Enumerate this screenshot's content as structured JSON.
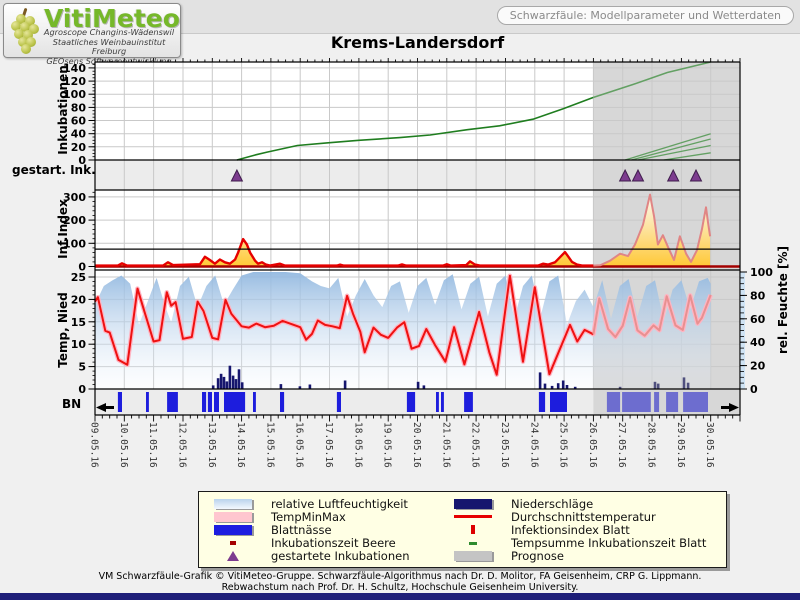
{
  "header": {
    "logo_title": "VitiMeteo",
    "logo_lines": [
      "Agroscope Changins-Wädenswil",
      "Staatliches Weinbauinstitut Freiburg",
      "GEOsens Softwareentwicklung"
    ],
    "badge": "Schwarzfäule: Modellparameter und Wetterdaten"
  },
  "title": "Krems-Landersdorf",
  "axis_labels": {
    "incubations": "Inkubationen",
    "started_incubations": "gestart. Ink.",
    "infection_index": "Inf.Index",
    "temp_precip": "Temp, Nied",
    "leaf_wetness": "BN",
    "rel_humidity": "rel. Feuchte [%]"
  },
  "legend": {
    "left": [
      {
        "swatch": "humidity",
        "label": "relative Luftfeuchtigkeit"
      },
      {
        "swatch": "tempminmax",
        "label": "TempMinMax"
      },
      {
        "swatch": "bn",
        "label": "Blattnässe"
      },
      {
        "swatch": "beere",
        "label": "Inkubationszeit Beere"
      },
      {
        "swatch": "triangle",
        "label": "gestartete Inkubationen"
      }
    ],
    "right": [
      {
        "swatch": "precip",
        "label": "Niederschläge"
      },
      {
        "swatch": "avgtemp",
        "label": "Durchschnittstemperatur"
      },
      {
        "swatch": "infindex",
        "label": "Infektionsindex Blatt"
      },
      {
        "swatch": "tempsum",
        "label": "Tempsumme Inkubationszeit Blatt"
      },
      {
        "swatch": "prognose",
        "label": "Prognose"
      }
    ]
  },
  "footer": {
    "line1": "VM Schwarzfäule-Grafik © VitiMeteo-Gruppe. Schwarzfäule-Algorithmus nach Dr. D. Molitor, FA Geisenheim, CRP G. Lippmann.",
    "line2": "Rebwachstum nach Prof. Dr. H. Schultz, Hochschule Geisenheim University."
  },
  "colors": {
    "tempsum_line": "#1f7d1f",
    "tempsum_prognose": "#63a063",
    "infection_line": "#e60000",
    "infection_prognose": "#e08585",
    "berry_baseline": "#a40000",
    "threshold": "#000000",
    "temperature_line": "#ee1111",
    "temperature_prognose": "#e89090",
    "tempminmax_band": "#ffb4c2",
    "humidity_top": "#93b9e0",
    "humidity_bottom": "#eef4fb",
    "precip": "#16166e",
    "precip_prognose": "#50507e",
    "bn_bar": "#1d1ddd",
    "bn_bar_prognose": "#6d6dcf",
    "marker": "#7d3c8f",
    "prognose_bg": "#d7d7d7",
    "band_bg": "#ececec",
    "grid": "#c9c9c9",
    "yellow_fill": "#ffc835",
    "axis_strip": "#cfe3f4"
  },
  "chart_data": {
    "type": "line",
    "x_axis": {
      "labels": [
        "09.05.16",
        "10.05.16",
        "11.05.16",
        "12.05.16",
        "13.05.16",
        "14.05.16",
        "15.05.16",
        "16.05.16",
        "17.05.16",
        "18.05.16",
        "19.05.16",
        "20.05.16",
        "21.05.16",
        "22.05.16",
        "23.05.16",
        "24.05.16",
        "25.05.16",
        "26.05.16",
        "27.05.16",
        "28.05.16",
        "29.05.16",
        "30.05.16"
      ],
      "days_total": 22,
      "prognose_start_day": 17
    },
    "incubations": {
      "ylim": [
        0,
        149
      ],
      "yticks": [
        0,
        20,
        40,
        60,
        80,
        100,
        120,
        140
      ],
      "tempsum_line": [
        [
          4.84,
          0
        ],
        [
          5.5,
          8
        ],
        [
          5.87,
          12
        ],
        [
          6.9,
          22
        ],
        [
          7.9,
          26
        ],
        [
          9.0,
          30
        ],
        [
          10.4,
          34
        ],
        [
          11.43,
          38
        ],
        [
          12.7,
          46
        ],
        [
          13.8,
          52
        ],
        [
          14.94,
          62
        ],
        [
          15.97,
          78
        ],
        [
          16.99,
          95
        ],
        [
          18.36,
          115
        ],
        [
          19.52,
          133
        ],
        [
          21.0,
          149
        ]
      ],
      "prognose_lines": [
        [
          [
            18.08,
            0
          ],
          [
            21.0,
            40
          ]
        ],
        [
          [
            18.3,
            0
          ],
          [
            21.0,
            32
          ]
        ],
        [
          [
            18.52,
            0
          ],
          [
            21.0,
            22
          ]
        ],
        [
          [
            19.4,
            0
          ],
          [
            21.0,
            11
          ]
        ]
      ]
    },
    "started_incubations": {
      "marker_days": [
        4.84,
        18.08,
        18.52,
        19.72,
        20.5
      ]
    },
    "infection_index": {
      "ylim": [
        0,
        330
      ],
      "yticks": [
        0,
        100,
        200,
        300
      ],
      "threshold": 75,
      "line": [
        [
          0,
          4
        ],
        [
          0.78,
          4
        ],
        [
          0.92,
          14
        ],
        [
          1.09,
          4
        ],
        [
          2.32,
          4
        ],
        [
          2.49,
          18
        ],
        [
          2.66,
          6
        ],
        [
          3.58,
          10
        ],
        [
          3.75,
          42
        ],
        [
          3.92,
          28
        ],
        [
          4.09,
          12
        ],
        [
          4.26,
          30
        ],
        [
          4.43,
          18
        ],
        [
          4.6,
          12
        ],
        [
          4.78,
          30
        ],
        [
          4.88,
          60
        ],
        [
          5.05,
          118
        ],
        [
          5.18,
          95
        ],
        [
          5.29,
          60
        ],
        [
          5.46,
          25
        ],
        [
          5.56,
          12
        ],
        [
          5.7,
          18
        ],
        [
          5.83,
          8
        ],
        [
          5.97,
          4
        ],
        [
          6.31,
          12
        ],
        [
          6.48,
          4
        ],
        [
          8.25,
          4
        ],
        [
          8.36,
          8
        ],
        [
          8.49,
          4
        ],
        [
          10.33,
          4
        ],
        [
          10.47,
          9
        ],
        [
          10.61,
          4
        ],
        [
          11.87,
          4
        ],
        [
          12.0,
          10
        ],
        [
          12.14,
          4
        ],
        [
          12.66,
          6
        ],
        [
          12.79,
          22
        ],
        [
          12.96,
          8
        ],
        [
          13.13,
          4
        ],
        [
          15.11,
          4
        ],
        [
          15.28,
          12
        ],
        [
          15.45,
          8
        ],
        [
          15.69,
          18
        ],
        [
          15.86,
          40
        ],
        [
          16.03,
          62
        ],
        [
          16.13,
          45
        ],
        [
          16.27,
          20
        ],
        [
          16.44,
          8
        ],
        [
          16.61,
          4
        ],
        [
          17.0,
          4
        ],
        [
          17.23,
          5
        ],
        [
          17.57,
          25
        ],
        [
          17.91,
          55
        ],
        [
          18.18,
          45
        ],
        [
          18.42,
          95
        ],
        [
          18.69,
          180
        ],
        [
          18.93,
          310
        ],
        [
          19.07,
          215
        ],
        [
          19.2,
          95
        ],
        [
          19.37,
          135
        ],
        [
          19.54,
          85
        ],
        [
          19.75,
          28
        ],
        [
          19.95,
          130
        ],
        [
          20.16,
          55
        ],
        [
          20.33,
          20
        ],
        [
          20.53,
          70
        ],
        [
          20.7,
          160
        ],
        [
          20.84,
          255
        ],
        [
          20.91,
          190
        ],
        [
          20.98,
          130
        ]
      ]
    },
    "weather": {
      "temp_ylim": [
        0,
        26.5
      ],
      "temp_yticks": [
        0,
        5,
        10,
        15,
        20,
        25
      ],
      "humidity_ylim": [
        0,
        100
      ],
      "humidity_yticks": [
        0,
        20,
        40,
        60,
        80,
        100
      ],
      "temperature": [
        [
          0,
          19.5
        ],
        [
          0.1,
          20.5
        ],
        [
          0.35,
          13
        ],
        [
          0.5,
          12.6
        ],
        [
          0.8,
          6.5
        ],
        [
          1.1,
          5.4
        ],
        [
          1.45,
          22.4
        ],
        [
          1.7,
          17
        ],
        [
          2.0,
          10.6
        ],
        [
          2.2,
          10.9
        ],
        [
          2.45,
          21.6
        ],
        [
          2.6,
          18.6
        ],
        [
          2.75,
          19.4
        ],
        [
          3.0,
          11.2
        ],
        [
          3.3,
          11.6
        ],
        [
          3.5,
          19.5
        ],
        [
          3.7,
          17.4
        ],
        [
          4.0,
          11.4
        ],
        [
          4.2,
          11.1
        ],
        [
          4.45,
          19.9
        ],
        [
          4.65,
          16.8
        ],
        [
          5.0,
          14
        ],
        [
          5.25,
          13.7
        ],
        [
          5.5,
          14.6
        ],
        [
          5.8,
          13.8
        ],
        [
          6.1,
          14.1
        ],
        [
          6.4,
          15.2
        ],
        [
          6.65,
          14.6
        ],
        [
          7.0,
          13.8
        ],
        [
          7.2,
          11
        ],
        [
          7.4,
          12.3
        ],
        [
          7.6,
          15.3
        ],
        [
          7.85,
          14.3
        ],
        [
          8.1,
          14
        ],
        [
          8.35,
          13.6
        ],
        [
          8.6,
          20.8
        ],
        [
          8.8,
          16.8
        ],
        [
          9.05,
          12.8
        ],
        [
          9.2,
          8.2
        ],
        [
          9.5,
          13.7
        ],
        [
          9.75,
          12.1
        ],
        [
          10.0,
          11.4
        ],
        [
          10.3,
          13.7
        ],
        [
          10.55,
          14.9
        ],
        [
          10.8,
          9
        ],
        [
          11.05,
          9.6
        ],
        [
          11.3,
          13.4
        ],
        [
          11.6,
          9.8
        ],
        [
          11.95,
          6.1
        ],
        [
          12.25,
          13.8
        ],
        [
          12.6,
          5.5
        ],
        [
          13.1,
          17.2
        ],
        [
          13.45,
          8.2
        ],
        [
          13.7,
          3.2
        ],
        [
          14.15,
          25.3
        ],
        [
          14.6,
          6.1
        ],
        [
          15.0,
          22.7
        ],
        [
          15.5,
          3.3
        ],
        [
          16.2,
          14.3
        ],
        [
          16.45,
          10.6
        ],
        [
          16.7,
          13.2
        ],
        [
          17.0,
          12.2
        ],
        [
          17.2,
          20.2
        ],
        [
          17.5,
          13.4
        ],
        [
          17.75,
          11.6
        ],
        [
          18.0,
          14.1
        ],
        [
          18.25,
          20.4
        ],
        [
          18.5,
          13.1
        ],
        [
          18.75,
          11.9
        ],
        [
          19.05,
          14.2
        ],
        [
          19.25,
          13.1
        ],
        [
          19.5,
          20.7
        ],
        [
          19.8,
          14.2
        ],
        [
          20.05,
          13.2
        ],
        [
          20.3,
          20.9
        ],
        [
          20.55,
          14.6
        ],
        [
          20.7,
          15.9
        ],
        [
          21.0,
          21
        ]
      ],
      "humidity": [
        [
          0,
          72
        ],
        [
          0.3,
          88
        ],
        [
          0.6,
          93
        ],
        [
          0.9,
          97
        ],
        [
          1.2,
          90
        ],
        [
          1.5,
          55
        ],
        [
          1.8,
          75
        ],
        [
          2.1,
          95
        ],
        [
          2.4,
          70
        ],
        [
          2.6,
          57
        ],
        [
          2.9,
          88
        ],
        [
          3.2,
          96
        ],
        [
          3.5,
          70
        ],
        [
          3.8,
          88
        ],
        [
          4.1,
          97
        ],
        [
          4.4,
          72
        ],
        [
          4.7,
          85
        ],
        [
          5.0,
          97
        ],
        [
          5.4,
          100
        ],
        [
          5.9,
          100
        ],
        [
          6.5,
          100
        ],
        [
          7.0,
          99
        ],
        [
          7.4,
          92
        ],
        [
          7.7,
          88
        ],
        [
          8.0,
          86
        ],
        [
          8.3,
          95
        ],
        [
          8.6,
          62
        ],
        [
          8.9,
          80
        ],
        [
          9.2,
          94
        ],
        [
          9.5,
          80
        ],
        [
          9.8,
          70
        ],
        [
          10.1,
          88
        ],
        [
          10.4,
          92
        ],
        [
          10.7,
          65
        ],
        [
          11.0,
          88
        ],
        [
          11.3,
          95
        ],
        [
          11.6,
          72
        ],
        [
          11.9,
          93
        ],
        [
          12.2,
          98
        ],
        [
          12.5,
          68
        ],
        [
          12.8,
          90
        ],
        [
          13.1,
          96
        ],
        [
          13.4,
          62
        ],
        [
          13.7,
          90
        ],
        [
          14.0,
          97
        ],
        [
          14.3,
          60
        ],
        [
          14.6,
          88
        ],
        [
          14.9,
          97
        ],
        [
          15.2,
          62
        ],
        [
          15.5,
          92
        ],
        [
          15.8,
          97
        ],
        [
          16.1,
          55
        ],
        [
          16.4,
          75
        ],
        [
          16.7,
          85
        ],
        [
          17.0,
          70
        ],
        [
          17.3,
          93
        ],
        [
          17.6,
          60
        ],
        [
          17.9,
          88
        ],
        [
          18.2,
          94
        ],
        [
          18.5,
          62
        ],
        [
          18.8,
          88
        ],
        [
          19.1,
          93
        ],
        [
          19.4,
          58
        ],
        [
          19.7,
          85
        ],
        [
          20.0,
          93
        ],
        [
          20.3,
          68
        ],
        [
          20.6,
          92
        ],
        [
          20.9,
          95
        ],
        [
          21.0,
          90
        ]
      ],
      "precipitation": [
        [
          4.03,
          0.8
        ],
        [
          4.2,
          2.4
        ],
        [
          4.3,
          3.4
        ],
        [
          4.4,
          2.7
        ],
        [
          4.5,
          1.7
        ],
        [
          4.6,
          5.2
        ],
        [
          4.71,
          3.0
        ],
        [
          4.81,
          2.2
        ],
        [
          4.91,
          4.4
        ],
        [
          5.02,
          1.5
        ],
        [
          6.34,
          1.1
        ],
        [
          6.99,
          0.6
        ],
        [
          7.33,
          1.0
        ],
        [
          8.53,
          1.9
        ],
        [
          11.02,
          1.6
        ],
        [
          11.22,
          0.8
        ],
        [
          15.18,
          3.7
        ],
        [
          15.35,
          1.2
        ],
        [
          15.59,
          0.7
        ],
        [
          15.8,
          1.3
        ],
        [
          15.97,
          1.9
        ],
        [
          16.1,
          0.9
        ],
        [
          16.38,
          0.5
        ],
        [
          17.91,
          0.5
        ],
        [
          19.1,
          1.6
        ],
        [
          19.21,
          1.2
        ],
        [
          20.09,
          2.6
        ],
        [
          20.23,
          1.4
        ]
      ]
    },
    "leaf_wetness": {
      "bars": [
        [
          0.78,
          0.92
        ],
        [
          1.74,
          1.84
        ],
        [
          2.46,
          2.83
        ],
        [
          3.65,
          3.79
        ],
        [
          3.85,
          3.99
        ],
        [
          4.06,
          4.23
        ],
        [
          4.4,
          5.12
        ],
        [
          5.39,
          5.49
        ],
        [
          6.31,
          6.45
        ],
        [
          8.25,
          8.39
        ],
        [
          10.64,
          10.92
        ],
        [
          11.63,
          11.73
        ],
        [
          11.8,
          11.9
        ],
        [
          12.59,
          12.89
        ],
        [
          15.14,
          15.35
        ],
        [
          15.52,
          16.1
        ]
      ],
      "prognose_bars": [
        [
          17.46,
          17.91
        ],
        [
          17.98,
          18.96
        ],
        [
          19.07,
          19.24
        ],
        [
          19.48,
          19.89
        ],
        [
          20.06,
          20.91
        ]
      ]
    }
  }
}
